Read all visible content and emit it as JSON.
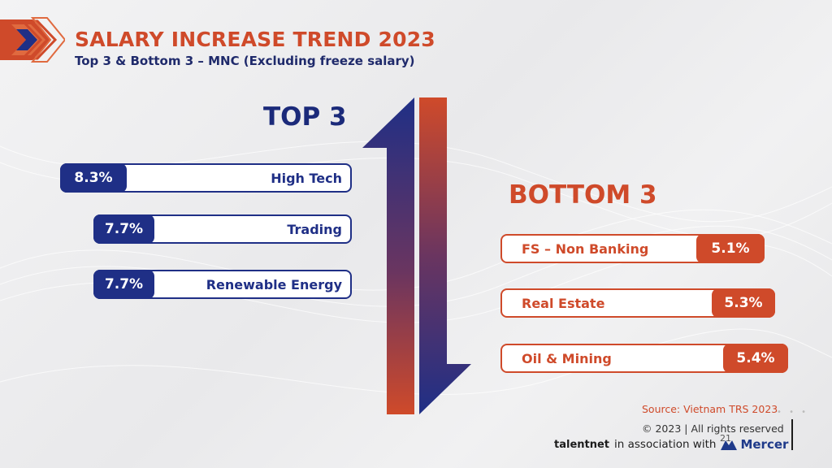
{
  "header": {
    "title": "SALARY INCREASE TREND 2023",
    "subtitle": "Top 3 & Bottom 3 – MNC (Excluding freeze salary)"
  },
  "top": {
    "heading": "TOP 3",
    "items": [
      {
        "value": "8.3%",
        "label": "High Tech"
      },
      {
        "value": "7.7%",
        "label": "Trading"
      },
      {
        "value": "7.7%",
        "label": "Renewable Energy"
      }
    ]
  },
  "bottom": {
    "heading": "BOTTOM 3",
    "items": [
      {
        "label": "FS – Non Banking",
        "value": "5.1%"
      },
      {
        "label": "Real Estate",
        "value": "5.3%"
      },
      {
        "label": "Oil & Mining",
        "value": "5.4%"
      }
    ]
  },
  "footer": {
    "source": "Source: Vietnam TRS 2023",
    "copyright": "© 2023 | All rights reserved",
    "page_number": "21",
    "talentnet": "talentnet",
    "association": "in association with",
    "mercer": "Mercer"
  },
  "colors": {
    "navy": "#1f2f86",
    "orange_red": "#cf4a2a"
  },
  "icons": {
    "logo": "layered-chevron-logo",
    "arrows": "up-down-arrows",
    "mercer": "mercer-logo-icon"
  }
}
